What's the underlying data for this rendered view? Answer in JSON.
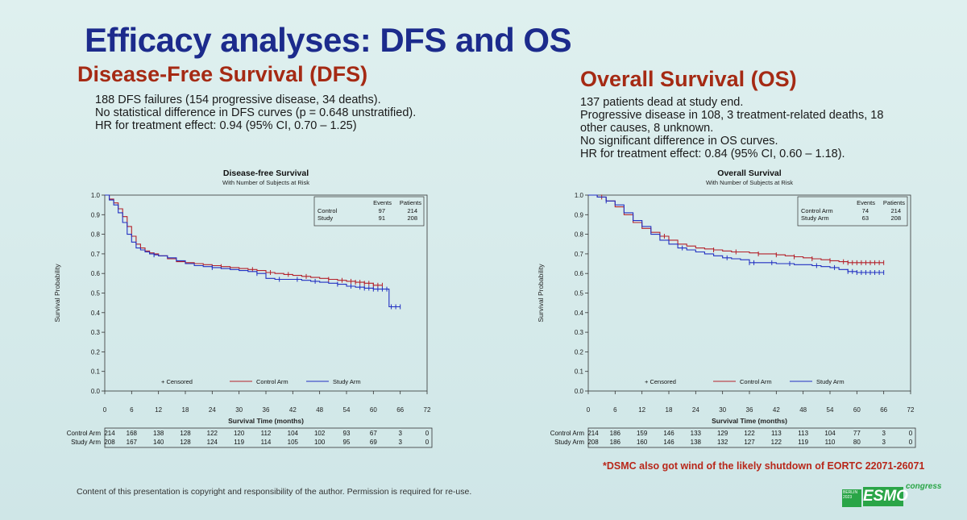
{
  "slide": {
    "title": "Efficacy analyses: DFS and OS",
    "footer": "Content of this presentation is copyright and responsibility of the author. Permission is required for re-use.",
    "note": "*DSMC also got wind of the likely shutdown of EORTC 22071-26071",
    "logo": {
      "badge": "BERLIN 2023",
      "word": "ESMO",
      "suffix": "congress"
    }
  },
  "dfs": {
    "heading": "Disease-Free Survival (DFS)",
    "lines": [
      "188 DFS failures (154 progressive disease, 34 deaths).",
      "No statistical difference in DFS curves (p = 0.648 unstratified).",
      "HR for treatment effect: 0.94 (95% CI, 0.70 – 1.25)"
    ]
  },
  "os": {
    "heading": "Overall Survival (OS)",
    "lines": [
      "137 patients dead at study end.",
      "Progressive disease in 108, 3 treatment-related deaths, 18",
      "other causes, 8 unknown.",
      "No significant difference in OS curves.",
      "HR for treatment effect: 0.84 (95% CI, 0.60 – 1.18)."
    ]
  },
  "chart_data": [
    {
      "type": "line",
      "title": "Disease-free Survival",
      "subtitle": "With Number of Subjects at Risk",
      "xlabel": "Survival Time (months)",
      "ylabel": "Survival Probability",
      "xlim": [
        0,
        72
      ],
      "ylim": [
        0.0,
        1.0
      ],
      "xticks": [
        0,
        6,
        12,
        18,
        24,
        30,
        36,
        42,
        48,
        54,
        60,
        66,
        72
      ],
      "yticks": [
        0.0,
        0.1,
        0.2,
        0.3,
        0.4,
        0.5,
        0.6,
        0.7,
        0.8,
        0.9,
        1.0
      ],
      "legend": {
        "symbol_label": "+ Censored",
        "position": "bottom"
      },
      "events_table": {
        "headers": [
          "Events",
          "Patients"
        ],
        "rows": [
          {
            "arm": "Control",
            "events": "97",
            "patients": "214"
          },
          {
            "arm": "Study",
            "events": "91",
            "patients": "208"
          }
        ]
      },
      "series": [
        {
          "name": "Control Arm",
          "color": "#b4212a",
          "x": [
            0,
            1,
            2,
            3,
            4,
            5,
            6,
            7,
            8,
            9,
            10,
            11,
            12,
            14,
            16,
            18,
            20,
            22,
            24,
            26,
            28,
            30,
            32,
            34,
            36,
            38,
            40,
            42,
            44,
            46,
            48,
            50,
            52,
            54,
            56,
            58,
            60,
            62
          ],
          "y": [
            1.0,
            0.98,
            0.96,
            0.93,
            0.89,
            0.84,
            0.79,
            0.75,
            0.73,
            0.715,
            0.705,
            0.7,
            0.69,
            0.675,
            0.66,
            0.655,
            0.65,
            0.645,
            0.64,
            0.635,
            0.63,
            0.625,
            0.62,
            0.615,
            0.605,
            0.6,
            0.595,
            0.59,
            0.585,
            0.58,
            0.575,
            0.57,
            0.565,
            0.56,
            0.555,
            0.55,
            0.54,
            0.54
          ],
          "censored": [
            26,
            33,
            37,
            41,
            45,
            50,
            53,
            55,
            56,
            57,
            58,
            59,
            60,
            61,
            62
          ]
        },
        {
          "name": "Study Arm",
          "color": "#2230c2",
          "x": [
            0,
            1,
            2,
            3,
            4,
            5,
            6,
            7,
            8,
            9,
            10,
            11,
            12,
            14,
            16,
            18,
            20,
            22,
            24,
            26,
            28,
            30,
            32,
            34,
            36,
            38,
            40,
            42,
            44,
            46,
            48,
            50,
            52,
            54,
            56,
            58,
            60,
            62,
            63,
            63.5,
            64,
            65,
            66
          ],
          "y": [
            1.0,
            0.975,
            0.95,
            0.91,
            0.86,
            0.8,
            0.76,
            0.73,
            0.72,
            0.71,
            0.7,
            0.695,
            0.69,
            0.68,
            0.665,
            0.65,
            0.64,
            0.635,
            0.63,
            0.625,
            0.62,
            0.615,
            0.61,
            0.6,
            0.575,
            0.57,
            0.57,
            0.57,
            0.565,
            0.56,
            0.555,
            0.55,
            0.545,
            0.535,
            0.53,
            0.525,
            0.52,
            0.52,
            0.52,
            0.43,
            0.43,
            0.43,
            0.43
          ],
          "censored": [
            11,
            24,
            34,
            39,
            43,
            47,
            52,
            55,
            57,
            58,
            59,
            60,
            61,
            62,
            63,
            64,
            65,
            66
          ]
        }
      ],
      "risk_table": {
        "arms": [
          "Control Arm",
          "Study Arm"
        ],
        "counts": [
          [
            "214",
            "168",
            "138",
            "128",
            "122",
            "120",
            "112",
            "104",
            "102",
            "93",
            "67",
            "3",
            "0"
          ],
          [
            "208",
            "167",
            "140",
            "128",
            "124",
            "119",
            "114",
            "105",
            "100",
            "95",
            "69",
            "3",
            "0"
          ]
        ]
      }
    },
    {
      "type": "line",
      "title": "Overall Survival",
      "subtitle": "With Number of Subjects at Risk",
      "xlabel": "Survival Time (months)",
      "ylabel": "Survival Probability",
      "xlim": [
        0,
        72
      ],
      "ylim": [
        0.0,
        1.0
      ],
      "xticks": [
        0,
        6,
        12,
        18,
        24,
        30,
        36,
        42,
        48,
        54,
        60,
        66,
        72
      ],
      "yticks": [
        0.0,
        0.1,
        0.2,
        0.3,
        0.4,
        0.5,
        0.6,
        0.7,
        0.8,
        0.9,
        1.0
      ],
      "legend": {
        "symbol_label": "+ Censored",
        "position": "bottom"
      },
      "events_table": {
        "headers": [
          "Events",
          "Patients"
        ],
        "rows": [
          {
            "arm": "Control Arm",
            "events": "74",
            "patients": "214"
          },
          {
            "arm": "Study Arm",
            "events": "63",
            "patients": "208"
          }
        ]
      },
      "series": [
        {
          "name": "Control Arm",
          "color": "#b4212a",
          "x": [
            0,
            2,
            4,
            6,
            8,
            10,
            12,
            14,
            16,
            18,
            20,
            22,
            24,
            26,
            28,
            30,
            32,
            34,
            36,
            38,
            40,
            42,
            44,
            46,
            48,
            50,
            52,
            54,
            56,
            58,
            60,
            62,
            64,
            66
          ],
          "y": [
            1.0,
            0.99,
            0.97,
            0.94,
            0.9,
            0.86,
            0.83,
            0.81,
            0.79,
            0.77,
            0.75,
            0.74,
            0.73,
            0.725,
            0.72,
            0.715,
            0.71,
            0.71,
            0.705,
            0.7,
            0.7,
            0.695,
            0.69,
            0.685,
            0.68,
            0.675,
            0.67,
            0.665,
            0.66,
            0.655,
            0.655,
            0.655,
            0.655,
            0.655
          ],
          "censored": [
            3,
            17,
            28,
            33,
            38,
            42,
            46,
            50,
            54,
            57,
            58,
            59,
            60,
            61,
            62,
            63,
            64,
            65,
            66
          ]
        },
        {
          "name": "Study Arm",
          "color": "#2230c2",
          "x": [
            0,
            2,
            4,
            6,
            8,
            10,
            12,
            14,
            16,
            18,
            20,
            22,
            24,
            26,
            28,
            30,
            32,
            34,
            36,
            38,
            40,
            42,
            44,
            46,
            48,
            50,
            52,
            54,
            56,
            58,
            60,
            62,
            64,
            66
          ],
          "y": [
            1.0,
            0.99,
            0.97,
            0.95,
            0.91,
            0.87,
            0.84,
            0.8,
            0.77,
            0.75,
            0.73,
            0.72,
            0.71,
            0.7,
            0.69,
            0.68,
            0.675,
            0.67,
            0.655,
            0.655,
            0.655,
            0.65,
            0.65,
            0.645,
            0.645,
            0.64,
            0.635,
            0.63,
            0.62,
            0.61,
            0.605,
            0.605,
            0.605,
            0.605
          ],
          "censored": [
            4,
            21,
            31,
            36,
            37,
            41,
            45,
            51,
            55,
            58,
            59,
            60,
            61,
            62,
            63,
            64,
            65,
            66
          ]
        }
      ],
      "risk_table": {
        "arms": [
          "Control Arm",
          "Study Arm"
        ],
        "counts": [
          [
            "214",
            "186",
            "159",
            "146",
            "133",
            "129",
            "122",
            "113",
            "113",
            "104",
            "77",
            "3",
            "0"
          ],
          [
            "208",
            "186",
            "160",
            "146",
            "138",
            "132",
            "127",
            "122",
            "119",
            "110",
            "80",
            "3",
            "0"
          ]
        ]
      }
    }
  ]
}
